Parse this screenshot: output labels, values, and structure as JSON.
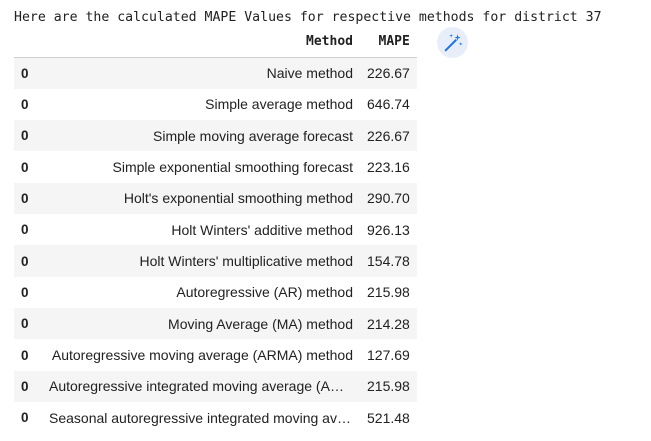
{
  "output": {
    "header_text": "Here are the calculated MAPE Values for respective methods for district 37"
  },
  "table": {
    "columns": [
      "Method",
      "MAPE"
    ],
    "rows": [
      {
        "index": "0",
        "method": "Naive method",
        "mape": "226.67"
      },
      {
        "index": "0",
        "method": "Simple average method",
        "mape": "646.74"
      },
      {
        "index": "0",
        "method": "Simple moving average forecast",
        "mape": "226.67"
      },
      {
        "index": "0",
        "method": "Simple exponential smoothing forecast",
        "mape": "223.16"
      },
      {
        "index": "0",
        "method": "Holt's exponential smoothing method",
        "mape": "290.70"
      },
      {
        "index": "0",
        "method": "Holt Winters' additive method",
        "mape": "926.13"
      },
      {
        "index": "0",
        "method": "Holt Winters' multiplicative method",
        "mape": "154.78"
      },
      {
        "index": "0",
        "method": "Autoregressive (AR) method",
        "mape": "215.98"
      },
      {
        "index": "0",
        "method": "Moving Average (MA) method",
        "mape": "214.28"
      },
      {
        "index": "0",
        "method": "Autoregressive moving average (ARMA) method",
        "mape": "127.69"
      },
      {
        "index": "0",
        "method": "Autoregressive integrated moving average (ARIM...",
        "mape": "215.98"
      },
      {
        "index": "0",
        "method": "Seasonal autoregressive integrated moving aver...",
        "mape": "521.48"
      }
    ]
  },
  "icons": {
    "magic_button": "magic-wand-icon"
  },
  "colors": {
    "accent": "#1a73e8",
    "stripe": "#f5f5f5",
    "text": "#212121"
  }
}
